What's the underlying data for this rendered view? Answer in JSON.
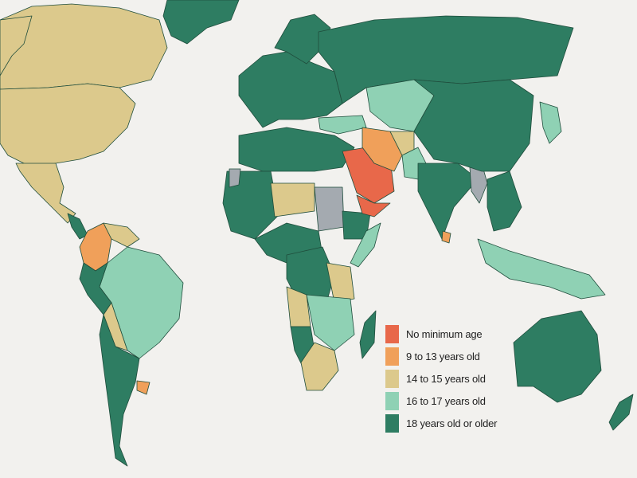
{
  "legend": {
    "items": [
      {
        "label": "No minimum age",
        "color": "#e8684a"
      },
      {
        "label": "9 to 13 years old",
        "color": "#f0a05a"
      },
      {
        "label": "14 to 15 years old",
        "color": "#dcc98c"
      },
      {
        "label": "16 to 17 years old",
        "color": "#8fd1b4"
      },
      {
        "label": "18 years old or older",
        "color": "#2e7d62"
      }
    ]
  },
  "colors": {
    "no_data": "#a4aab0",
    "background": "#f2f1ee",
    "border": "#1f4d3c"
  },
  "regions": [
    {
      "id": "canada",
      "category": 2
    },
    {
      "id": "usa",
      "category": 2
    },
    {
      "id": "alaska",
      "category": 2
    },
    {
      "id": "mexico",
      "category": 2
    },
    {
      "id": "central-america",
      "category": 4
    },
    {
      "id": "greenland",
      "category": 4
    },
    {
      "id": "colombia",
      "category": 1
    },
    {
      "id": "venezuela",
      "category": 2
    },
    {
      "id": "brazil",
      "category": 3
    },
    {
      "id": "peru",
      "category": 4
    },
    {
      "id": "bolivia",
      "category": 2
    },
    {
      "id": "argentina-chile",
      "category": 4
    },
    {
      "id": "uruguay",
      "category": 1
    },
    {
      "id": "europe",
      "category": 4
    },
    {
      "id": "scandinavia",
      "category": 4
    },
    {
      "id": "russia",
      "category": 4
    },
    {
      "id": "turkey",
      "category": 3
    },
    {
      "id": "north-africa",
      "category": 4
    },
    {
      "id": "west-africa",
      "category": 4
    },
    {
      "id": "mauritania",
      "category": "no_data"
    },
    {
      "id": "niger-chad",
      "category": 2
    },
    {
      "id": "sudan",
      "category": "no_data"
    },
    {
      "id": "ethiopia",
      "category": 4
    },
    {
      "id": "somalia",
      "category": 3
    },
    {
      "id": "central-africa",
      "category": 4
    },
    {
      "id": "drc",
      "category": 4
    },
    {
      "id": "tanzania",
      "category": 2
    },
    {
      "id": "angola",
      "category": 2
    },
    {
      "id": "zambia-mozambique",
      "category": 3
    },
    {
      "id": "namibia",
      "category": 4
    },
    {
      "id": "south-africa",
      "category": 2
    },
    {
      "id": "madagascar",
      "category": 4
    },
    {
      "id": "saudi-arabia",
      "category": 0
    },
    {
      "id": "yemen",
      "category": 0
    },
    {
      "id": "iran",
      "category": 1
    },
    {
      "id": "afghanistan",
      "category": 2
    },
    {
      "id": "pakistan",
      "category": 3
    },
    {
      "id": "central-asia",
      "category": 3
    },
    {
      "id": "india",
      "category": 4
    },
    {
      "id": "sri-lanka",
      "category": 1
    },
    {
      "id": "myanmar",
      "category": "no_data"
    },
    {
      "id": "china-mongolia",
      "category": 4
    },
    {
      "id": "japan",
      "category": 3
    },
    {
      "id": "southeast-asia",
      "category": 4
    },
    {
      "id": "indonesia",
      "category": 3
    },
    {
      "id": "australia",
      "category": 4
    },
    {
      "id": "new-zealand",
      "category": 4
    }
  ]
}
